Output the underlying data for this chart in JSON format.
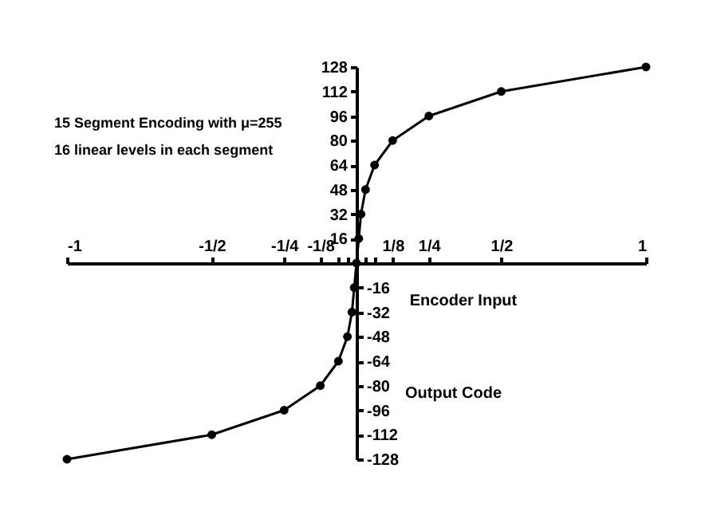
{
  "chart_data": {
    "type": "line",
    "xlabel": "Encoder Input",
    "y2label": "Output Code",
    "annotations": [
      "15 Segment Encoding with μ=255",
      "16 linear levels in each segment"
    ],
    "x": [
      -1,
      -0.5,
      -0.25,
      -0.125,
      -0.0625,
      -0.03125,
      -0.015625,
      -0.0078125,
      0,
      0.0078125,
      0.015625,
      0.03125,
      0.0625,
      0.125,
      0.25,
      0.5,
      1
    ],
    "series": [
      {
        "color": "#000000",
        "values": [
          -128,
          -112,
          -96,
          -80,
          -64,
          -48,
          -32,
          -16,
          0,
          16,
          32,
          48,
          64,
          80,
          96,
          112,
          128
        ]
      }
    ],
    "xlim": [
      -1,
      1
    ],
    "ylim": [
      -128,
      128
    ],
    "xticks": [
      {
        "value": -1,
        "label": "-1"
      },
      {
        "value": -0.5,
        "label": "-1/2"
      },
      {
        "value": -0.25,
        "label": "-1/4"
      },
      {
        "value": -0.125,
        "label": "-1/8"
      },
      {
        "value": -0.0625,
        "label": null
      },
      {
        "value": -0.03125,
        "label": null
      },
      {
        "value": 0.03125,
        "label": null
      },
      {
        "value": 0.0625,
        "label": null
      },
      {
        "value": 0.125,
        "label": "1/8"
      },
      {
        "value": 0.25,
        "label": "1/4"
      },
      {
        "value": 0.5,
        "label": "1/2"
      },
      {
        "value": 1,
        "label": "1"
      }
    ],
    "yticks": [
      16,
      32,
      48,
      64,
      80,
      96,
      112,
      128
    ],
    "y2lim": [
      -128,
      128
    ],
    "y2ticks": [
      -128,
      -112,
      -96,
      -80,
      -64,
      -48,
      -32,
      -16
    ],
    "marker": "circle",
    "line_style": "solid",
    "grid": false
  }
}
